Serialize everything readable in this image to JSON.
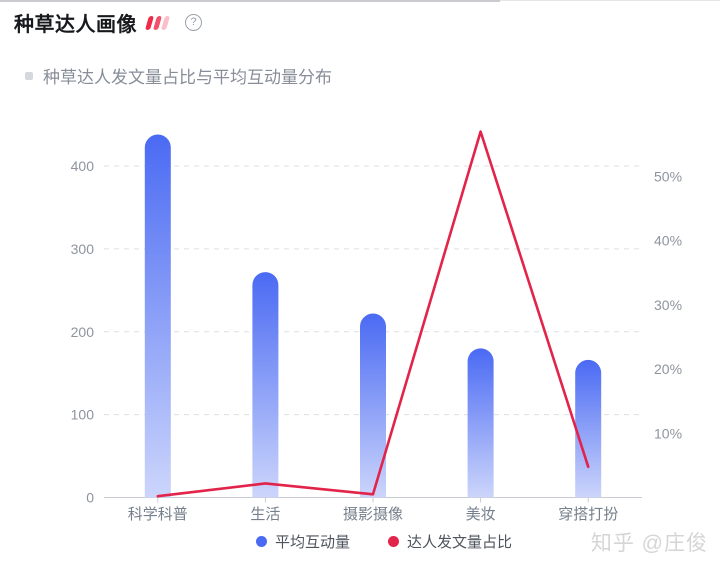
{
  "header": {
    "title": "种草达人画像",
    "hot_icon": "three-red-slashes",
    "help_glyph": "?"
  },
  "subtitle": "种草达人发文量占比与平均互动量分布",
  "watermark": "知乎 @庄俊",
  "colors": {
    "accent_red": "#ee2b49",
    "bar_top": "#4a6af3",
    "bar_bottom": "#ccd5fb",
    "line_red": "#e2244a",
    "grid": "#dcdfe3",
    "axis": "#c8ccd2",
    "tick_label": "#8e949e",
    "category_label": "#76808c"
  },
  "chart_data": {
    "type": "bar",
    "subtype": "combo-bar-line-dual-axis",
    "title": "种草达人发文量占比与平均互动量分布",
    "categories": [
      "科学科普",
      "生活",
      "摄影摄像",
      "美妆",
      "穿搭打扮"
    ],
    "series": [
      {
        "name": "平均互动量",
        "type": "bar",
        "yaxis": "left",
        "values": [
          438,
          272,
          222,
          180,
          166
        ],
        "color": "#4a6af3",
        "color_bottom": "#ccd5fb"
      },
      {
        "name": "达人发文量占比",
        "type": "line",
        "yaxis": "right",
        "unit": "%",
        "values": [
          0.2,
          2.2,
          0.5,
          57,
          4.8
        ],
        "color": "#e2244a"
      }
    ],
    "left_axis": {
      "ticks": [
        0,
        100,
        200,
        300,
        400
      ],
      "range": [
        0,
        450
      ]
    },
    "right_axis": {
      "ticks": [
        "10%",
        "20%",
        "30%",
        "40%",
        "50%"
      ],
      "tick_values": [
        10,
        20,
        30,
        40,
        50
      ],
      "range": [
        0,
        57.5
      ]
    },
    "grid": "horizontal-dashed",
    "legend_position": "bottom-center",
    "xlabel": "",
    "ylabel_left": "",
    "ylabel_right": ""
  }
}
